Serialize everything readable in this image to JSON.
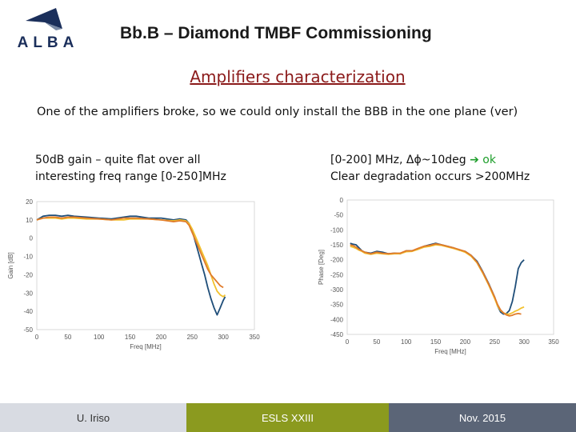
{
  "header": {
    "logo_text": "ALBA",
    "title": "Bb.B – Diamond TMBF Commissioning"
  },
  "subtitle": "Amplifiers characterization",
  "intro": "One of the amplifiers broke, so we could only install the BBB in the one plane (ver)",
  "notes": {
    "left_line1": "50dB gain – quite flat over all",
    "left_line2": "interesting freq range [0-250]MHz",
    "right_line1_prefix": "[0-200] MHz, Δϕ~10deg ",
    "right_arrow": "➔",
    "right_ok": "ok",
    "right_line2": "Clear degradation occurs >200MHz"
  },
  "colors": {
    "title_red": "#8b1a1a",
    "ok_green": "#1e9e2b",
    "series": [
      "#1f4e79",
      "#f2c12e",
      "#e07b2a"
    ]
  },
  "footer": {
    "author": "U. Iriso",
    "event": "ESLS XXIII",
    "date": "Nov. 2015"
  },
  "chart_data": [
    {
      "type": "line",
      "xlabel": "Freq [MHz]",
      "ylabel": "Gain [dB]",
      "xlim": [
        0,
        350
      ],
      "ylim": [
        -50,
        20
      ],
      "xticks": [
        0,
        50,
        100,
        150,
        200,
        250,
        300,
        350
      ],
      "yticks": [
        20,
        10,
        0,
        -10,
        -20,
        -30,
        -40,
        -50
      ],
      "grid": false,
      "series": [
        {
          "color": "#1f4e79",
          "x": [
            0,
            5,
            10,
            20,
            30,
            40,
            50,
            60,
            80,
            100,
            120,
            140,
            150,
            160,
            180,
            200,
            220,
            230,
            240,
            245,
            250,
            255,
            260,
            265,
            270,
            275,
            280,
            285,
            290,
            295,
            300,
            303
          ],
          "y": [
            10,
            11,
            12,
            12.5,
            12.5,
            12,
            12.5,
            12,
            11.5,
            11,
            10.5,
            11.5,
            12,
            12,
            11,
            11,
            10,
            10.5,
            10,
            8,
            4,
            -2,
            -8,
            -14,
            -20,
            -27,
            -33,
            -38,
            -42,
            -38,
            -34,
            -32
          ]
        },
        {
          "color": "#f2c12e",
          "x": [
            0,
            5,
            10,
            20,
            30,
            40,
            50,
            60,
            80,
            100,
            120,
            140,
            150,
            160,
            180,
            200,
            220,
            230,
            240,
            245,
            250,
            255,
            260,
            265,
            270,
            275,
            280,
            285,
            290,
            295,
            300,
            303
          ],
          "y": [
            10,
            10.5,
            11,
            11,
            11,
            10.5,
            11,
            11,
            10.5,
            10.5,
            10,
            10,
            10.5,
            10.5,
            10.5,
            10,
            9.5,
            10,
            9.5,
            8,
            5,
            1,
            -3,
            -7,
            -11,
            -15,
            -20,
            -25,
            -29,
            -31,
            -32,
            -31
          ]
        },
        {
          "color": "#e07b2a",
          "x": [
            0,
            5,
            10,
            20,
            30,
            40,
            50,
            60,
            80,
            100,
            120,
            140,
            150,
            160,
            180,
            200,
            220,
            230,
            240,
            245,
            250,
            255,
            260,
            265,
            270,
            275,
            280,
            285,
            290,
            295,
            300
          ],
          "y": [
            10,
            10.5,
            11,
            11.5,
            11.5,
            11,
            11.5,
            11.5,
            11,
            10.5,
            10,
            11,
            11,
            11,
            10.5,
            10,
            9,
            9.5,
            9,
            7,
            3,
            -1,
            -5,
            -9,
            -13,
            -17,
            -20,
            -22,
            -24,
            -26,
            -27
          ]
        }
      ]
    },
    {
      "type": "line",
      "xlabel": "Freq [MHz]",
      "ylabel": "Phase [Deg]",
      "xlim": [
        0,
        350
      ],
      "ylim": [
        -450,
        0
      ],
      "xticks": [
        0,
        50,
        100,
        150,
        200,
        250,
        300,
        350
      ],
      "yticks": [
        0,
        -50,
        -100,
        -150,
        -200,
        -250,
        -300,
        -350,
        -400,
        -450
      ],
      "grid": false,
      "series": [
        {
          "color": "#1f4e79",
          "x": [
            5,
            10,
            15,
            20,
            25,
            30,
            40,
            50,
            60,
            70,
            80,
            90,
            100,
            110,
            120,
            130,
            140,
            150,
            160,
            170,
            180,
            190,
            200,
            210,
            220,
            230,
            240,
            250,
            255,
            260,
            265,
            270,
            275,
            280,
            285,
            290,
            295,
            300
          ],
          "y": [
            -145,
            -148,
            -150,
            -160,
            -170,
            -175,
            -178,
            -172,
            -175,
            -180,
            -178,
            -180,
            -170,
            -170,
            -165,
            -155,
            -150,
            -145,
            -150,
            -155,
            -160,
            -168,
            -172,
            -185,
            -205,
            -240,
            -280,
            -325,
            -355,
            -375,
            -382,
            -380,
            -370,
            -340,
            -290,
            -230,
            -210,
            -200
          ]
        },
        {
          "color": "#f2c12e",
          "x": [
            5,
            10,
            15,
            20,
            25,
            30,
            40,
            50,
            60,
            70,
            80,
            90,
            100,
            110,
            120,
            130,
            140,
            150,
            160,
            170,
            180,
            190,
            200,
            210,
            220,
            230,
            240,
            250,
            255,
            260,
            265,
            270,
            275,
            280,
            285,
            290,
            295,
            300
          ],
          "y": [
            -155,
            -158,
            -162,
            -168,
            -172,
            -178,
            -182,
            -178,
            -180,
            -182,
            -180,
            -180,
            -173,
            -172,
            -165,
            -158,
            -155,
            -150,
            -152,
            -157,
            -162,
            -168,
            -175,
            -188,
            -210,
            -245,
            -285,
            -330,
            -355,
            -370,
            -378,
            -382,
            -382,
            -378,
            -372,
            -368,
            -362,
            -358
          ]
        },
        {
          "color": "#e07b2a",
          "x": [
            5,
            10,
            15,
            20,
            25,
            30,
            40,
            50,
            60,
            70,
            80,
            90,
            100,
            110,
            120,
            130,
            140,
            150,
            160,
            170,
            180,
            190,
            200,
            210,
            220,
            230,
            240,
            250,
            255,
            260,
            265,
            270,
            275,
            280,
            285,
            290,
            295
          ],
          "y": [
            -150,
            -153,
            -158,
            -165,
            -170,
            -175,
            -180,
            -175,
            -178,
            -180,
            -178,
            -178,
            -170,
            -170,
            -162,
            -155,
            -152,
            -147,
            -150,
            -155,
            -160,
            -166,
            -172,
            -185,
            -208,
            -242,
            -282,
            -325,
            -350,
            -368,
            -378,
            -385,
            -388,
            -386,
            -382,
            -380,
            -382
          ]
        }
      ]
    }
  ]
}
